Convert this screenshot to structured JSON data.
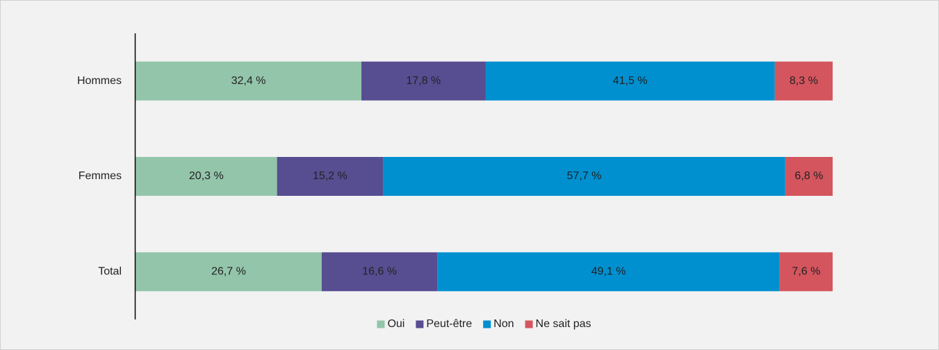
{
  "chart_data": {
    "type": "stacked_barh",
    "categories": [
      "Hommes",
      "Femmes",
      "Total"
    ],
    "series": [
      {
        "name": "Oui",
        "color": "#93c5aa",
        "values": [
          32.4,
          20.3,
          26.7
        ],
        "value_labels": [
          "32,4 %",
          "20,3 %",
          "26,7 %"
        ]
      },
      {
        "name": "Peut-être",
        "color": "#574d91",
        "values": [
          17.8,
          15.2,
          16.6
        ],
        "value_labels": [
          "17,8 %",
          "15,2 %",
          "16,6 %"
        ]
      },
      {
        "name": "Non",
        "color": "#0090d0",
        "values": [
          41.5,
          57.7,
          49.1
        ],
        "value_labels": [
          "41,5 %",
          "57,7 %",
          "49,1 %"
        ]
      },
      {
        "name": "Ne sait pas",
        "color": "#d4555e",
        "values": [
          8.3,
          6.8,
          7.6
        ],
        "value_labels": [
          "8,3 %",
          "6,8 %",
          "7,6 %"
        ]
      }
    ],
    "xlim": [
      0,
      100
    ],
    "legend": "bottom"
  }
}
